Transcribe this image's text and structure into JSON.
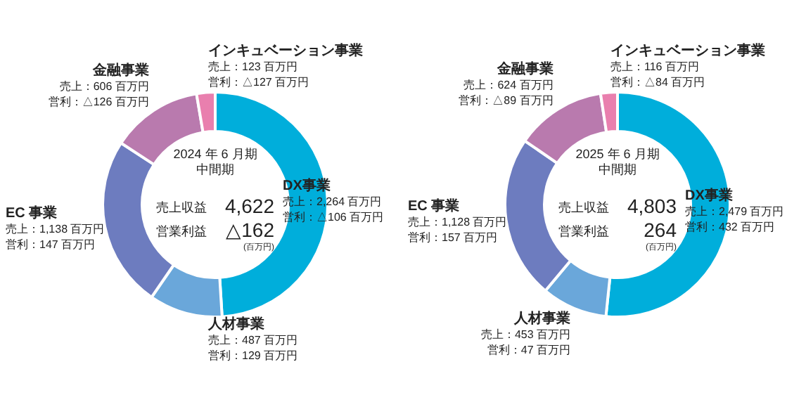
{
  "chart_data": [
    {
      "type": "donut",
      "title": "2024 年 6 月期",
      "subtitle": "中間期",
      "categories": [
        "DX事業",
        "人材事業",
        "EC 事業",
        "金融事業",
        "インキュベーション事業"
      ],
      "values": [
        2264,
        487,
        1138,
        606,
        123
      ],
      "colors": [
        "#00aedb",
        "#6aa7da",
        "#6d7cbf",
        "#b97aae",
        "#e97fae"
      ],
      "value_labels": [
        "売上：2,264 百万円",
        "売上：487 百万円",
        "売上：1,138 百万円",
        "売上：606 百万円",
        "売上：123 百万円"
      ],
      "annotations": [
        "営利：△106 百万円",
        "営利：129 百万円",
        "営利：147 百万円",
        "営利：△126 百万円",
        "営利：△127 百万円",
        "売上収益",
        "4,622",
        "営業利益",
        "△162",
        "(百万円)"
      ]
    },
    {
      "type": "donut",
      "title": "2025 年 6 月期",
      "subtitle": "中間期",
      "categories": [
        "DX事業",
        "人材事業",
        "EC 事業",
        "金融事業",
        "インキュベーション事業"
      ],
      "values": [
        2479,
        453,
        1128,
        624,
        116
      ],
      "colors": [
        "#00aedb",
        "#6aa7da",
        "#6d7cbf",
        "#b97aae",
        "#e97fae"
      ],
      "value_labels": [
        "売上：2,479 百万円",
        "売上：453 百万円",
        "売上：1,128 百万円",
        "売上：624 百万円",
        "売上：116 百万円"
      ],
      "annotations": [
        "営利：432 百万円",
        "営利：47 百万円",
        "営利：157 百万円",
        "営利：△89 百万円",
        "営利：△84 百万円",
        "売上収益",
        "4,803",
        "営業利益",
        "264",
        "(百万円)"
      ]
    }
  ]
}
